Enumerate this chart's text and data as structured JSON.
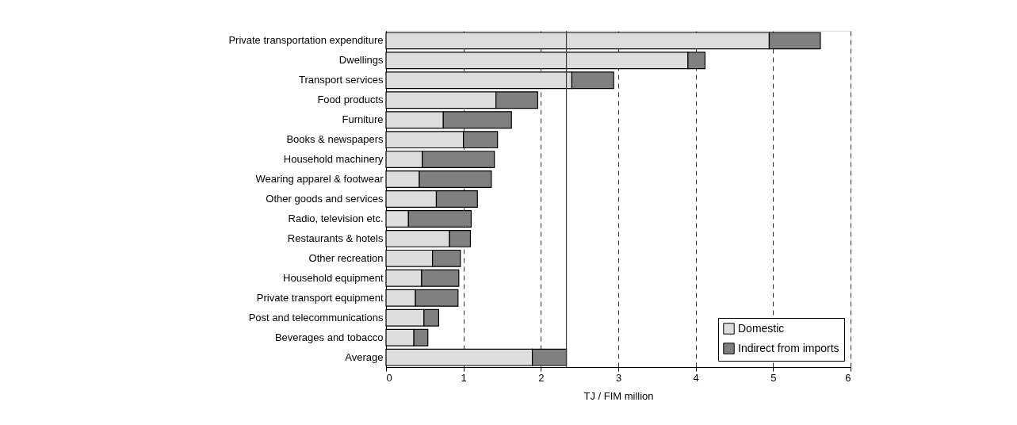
{
  "chart_data": {
    "type": "bar",
    "orientation": "horizontal",
    "stacked": true,
    "xlabel": "TJ / FIM million",
    "categories": [
      "Private transportation expenditure",
      "Dwellings",
      "Transport services",
      "Food products",
      "Furniture",
      "Books & newspapers",
      "Household machinery",
      "Wearing apparel & footwear",
      "Other goods and services",
      "Radio, television etc.",
      "Restaurants & hotels",
      "Other recreation",
      "Household equipment",
      "Private transport equipment",
      "Post and telecommunications",
      "Beverages and tobacco",
      "Average"
    ],
    "series": [
      {
        "name": "Domestic",
        "color": "#dddddd",
        "values": [
          4.95,
          3.9,
          2.4,
          1.42,
          0.74,
          1.0,
          0.47,
          0.43,
          0.65,
          0.29,
          0.82,
          0.6,
          0.46,
          0.38,
          0.49,
          0.36,
          1.89
        ]
      },
      {
        "name": "Indirect from imports",
        "color": "#808080",
        "values": [
          0.66,
          0.22,
          0.54,
          0.54,
          0.88,
          0.44,
          0.93,
          0.93,
          0.53,
          0.81,
          0.27,
          0.36,
          0.48,
          0.55,
          0.19,
          0.18,
          0.44
        ]
      }
    ],
    "xlim": [
      0,
      6
    ],
    "xticks": [
      0,
      1,
      2,
      3,
      4,
      5,
      6
    ],
    "grid": "x",
    "legend": "bottom right",
    "ref_lines": [
      {
        "axis": "x",
        "value": 2.33,
        "label": null,
        "color": "#404040",
        "line_style": "solid"
      }
    ]
  }
}
